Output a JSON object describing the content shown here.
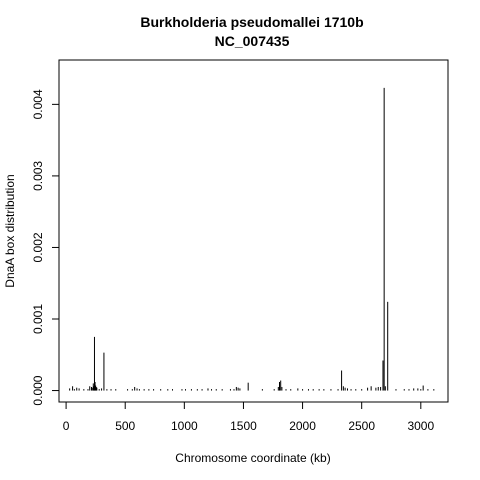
{
  "chart_data": {
    "type": "bar",
    "title_line1": "Burkholderia pseudomallei 1710b",
    "title_line2": "NC_007435",
    "xlabel": "Chromosome coordinate (kb)",
    "ylabel": "DnaA box distribution",
    "xlim": [
      -60,
      3230
    ],
    "ylim": [
      -0.00016,
      0.00462
    ],
    "x_ticks": [
      0,
      500,
      1000,
      1500,
      2000,
      2500,
      3000
    ],
    "x_tick_labels": [
      "0",
      "500",
      "1000",
      "1500",
      "2000",
      "2500",
      "3000"
    ],
    "y_ticks": [
      0,
      0.001,
      0.002,
      0.003,
      0.004
    ],
    "y_tick_labels": [
      "0.000",
      "0.001",
      "0.002",
      "0.003",
      "0.004"
    ],
    "series": [
      {
        "x": [
          30,
          55,
          70,
          90,
          110,
          150,
          185,
          200,
          215,
          225,
          230,
          235,
          240,
          245,
          250,
          255,
          260,
          280,
          300,
          320,
          345,
          380,
          420,
          520,
          560,
          580,
          600,
          620,
          660,
          700,
          740,
          800,
          860,
          900,
          980,
          1010,
          1060,
          1110,
          1150,
          1200,
          1230,
          1270,
          1320,
          1390,
          1420,
          1440,
          1455,
          1470,
          1540,
          1660,
          1760,
          1795,
          1805,
          1815,
          1825,
          1860,
          1900,
          1960,
          2000,
          2050,
          2090,
          2140,
          2180,
          2240,
          2300,
          2330,
          2345,
          2360,
          2380,
          2410,
          2450,
          2500,
          2550,
          2580,
          2620,
          2640,
          2660,
          2680,
          2690,
          2700,
          2720,
          2790,
          2860,
          2900,
          2940,
          2975,
          3000,
          3020,
          3060,
          3110
        ],
        "values": [
          3e-05,
          6e-05,
          2e-05,
          4e-05,
          3e-05,
          2e-05,
          2e-05,
          6e-05,
          5e-05,
          4e-05,
          0.0001,
          6e-05,
          0.00075,
          0.00012,
          7e-05,
          5e-05,
          4e-05,
          2e-05,
          3e-05,
          0.00053,
          2e-05,
          2e-05,
          2e-05,
          2e-05,
          2e-05,
          5e-05,
          3e-05,
          2e-05,
          2e-05,
          2e-05,
          2e-05,
          2e-05,
          2e-05,
          2e-05,
          2e-05,
          2e-05,
          2e-05,
          2e-05,
          2e-05,
          3e-05,
          2e-05,
          2e-05,
          2e-05,
          2e-05,
          2e-05,
          5e-05,
          4e-05,
          3e-05,
          0.00011,
          2e-05,
          2e-05,
          5e-05,
          0.00012,
          0.00014,
          5e-05,
          2e-05,
          2e-05,
          3e-05,
          2e-05,
          2e-05,
          2e-05,
          2e-05,
          2e-05,
          2e-05,
          2e-05,
          0.00028,
          6e-05,
          4e-05,
          3e-05,
          2e-05,
          2e-05,
          2e-05,
          4e-05,
          6e-05,
          4e-05,
          5e-05,
          5e-05,
          0.00042,
          0.00423,
          6e-05,
          0.00124,
          2e-05,
          2e-05,
          2e-05,
          3e-05,
          3e-05,
          2e-05,
          7e-05,
          2e-05,
          2e-05
        ]
      }
    ]
  }
}
